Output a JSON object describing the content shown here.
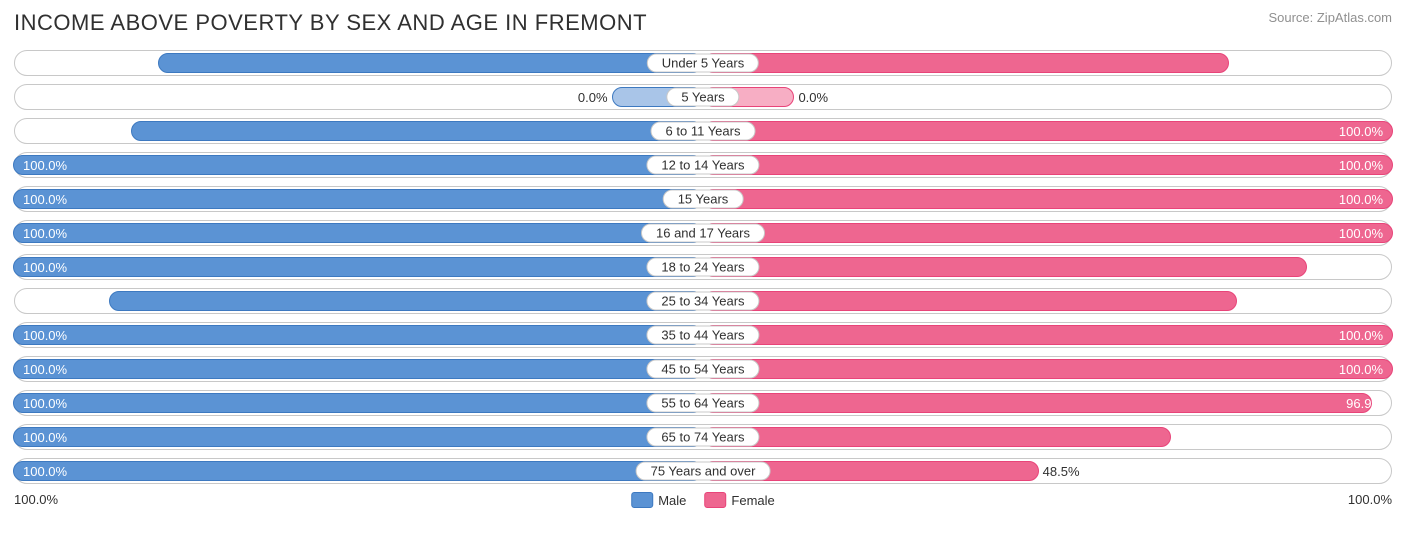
{
  "title": "INCOME ABOVE POVERTY BY SEX AND AGE IN FREMONT",
  "source": "Source: ZipAtlas.com",
  "colors": {
    "male_fill": "#5b93d4",
    "male_border": "#3d79c0",
    "female_fill": "#ee6690",
    "female_border": "#e84479",
    "track_border": "#c8c8c8",
    "text": "#303030",
    "value_inside": "#ffffff",
    "background": "#ffffff"
  },
  "legend": {
    "male": "Male",
    "female": "Female"
  },
  "axis": {
    "left": "100.0%",
    "right": "100.0%"
  },
  "zero_bar_min_pct": 13,
  "rows": [
    {
      "category": "Under 5 Years",
      "male": 78.9,
      "male_label": "78.9%",
      "female": 76.2,
      "female_label": "76.2%"
    },
    {
      "category": "5 Years",
      "male": 0.0,
      "male_label": "0.0%",
      "female": 0.0,
      "female_label": "0.0%"
    },
    {
      "category": "6 to 11 Years",
      "male": 82.8,
      "male_label": "82.8%",
      "female": 100.0,
      "female_label": "100.0%"
    },
    {
      "category": "12 to 14 Years",
      "male": 100.0,
      "male_label": "100.0%",
      "female": 100.0,
      "female_label": "100.0%"
    },
    {
      "category": "15 Years",
      "male": 100.0,
      "male_label": "100.0%",
      "female": 100.0,
      "female_label": "100.0%"
    },
    {
      "category": "16 and 17 Years",
      "male": 100.0,
      "male_label": "100.0%",
      "female": 100.0,
      "female_label": "100.0%"
    },
    {
      "category": "18 to 24 Years",
      "male": 100.0,
      "male_label": "100.0%",
      "female": 87.5,
      "female_label": "87.5%"
    },
    {
      "category": "25 to 34 Years",
      "male": 86.1,
      "male_label": "86.1%",
      "female": 77.3,
      "female_label": "77.3%"
    },
    {
      "category": "35 to 44 Years",
      "male": 100.0,
      "male_label": "100.0%",
      "female": 100.0,
      "female_label": "100.0%"
    },
    {
      "category": "45 to 54 Years",
      "male": 100.0,
      "male_label": "100.0%",
      "female": 100.0,
      "female_label": "100.0%"
    },
    {
      "category": "55 to 64 Years",
      "male": 100.0,
      "male_label": "100.0%",
      "female": 96.9,
      "female_label": "96.9%"
    },
    {
      "category": "65 to 74 Years",
      "male": 100.0,
      "male_label": "100.0%",
      "female": 67.7,
      "female_label": "67.7%"
    },
    {
      "category": "75 Years and over",
      "male": 100.0,
      "male_label": "100.0%",
      "female": 48.5,
      "female_label": "48.5%"
    }
  ]
}
